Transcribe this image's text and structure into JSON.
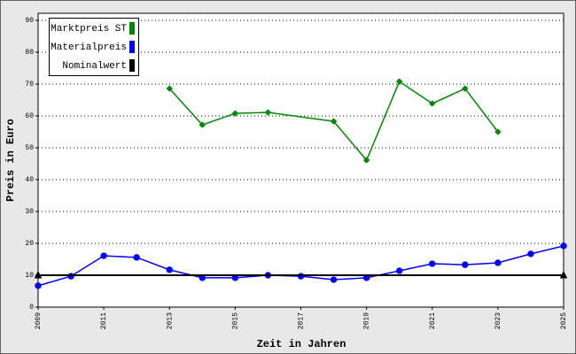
{
  "chart_data": {
    "type": "line",
    "x_label": "Zeit in Jahren",
    "y_label": "Preis in Euro",
    "xlim": [
      2009,
      2025
    ],
    "xticks": [
      2009,
      2011,
      2013,
      2015,
      2017,
      2019,
      2021,
      2023,
      2025
    ],
    "ylim": [
      0,
      90
    ],
    "yticks": [
      0,
      10,
      20,
      30,
      40,
      50,
      60,
      70,
      80,
      90
    ],
    "grid": true,
    "legend": "top-left",
    "series": [
      {
        "name": "Marktpreis ST",
        "color": "#008800",
        "marker": "diamond",
        "x": [
          2013,
          2014,
          2015,
          2016,
          2018,
          2019,
          2020,
          2021,
          2022,
          2023
        ],
        "values": [
          68.6,
          57.2,
          60.8,
          61.1,
          58.3,
          46.1,
          70.8,
          63.9,
          68.6,
          55
        ]
      },
      {
        "name": "Materialpreis",
        "color": "#0000ff",
        "marker": "circle",
        "x": [
          2009,
          2010,
          2011,
          2012,
          2013,
          2014,
          2015,
          2016,
          2017,
          2018,
          2019,
          2020,
          2021,
          2022,
          2023,
          2024,
          2025
        ],
        "values": [
          6.7,
          9.7,
          16.1,
          15.6,
          11.7,
          9.2,
          9.2,
          10,
          9.7,
          8.6,
          9.2,
          11.4,
          13.6,
          13.3,
          13.9,
          16.7,
          19.2
        ]
      },
      {
        "name": "Nominalwert",
        "color": "#000000",
        "marker": "triangle",
        "x": [
          2009,
          2025
        ],
        "values": [
          10,
          10
        ]
      }
    ]
  }
}
